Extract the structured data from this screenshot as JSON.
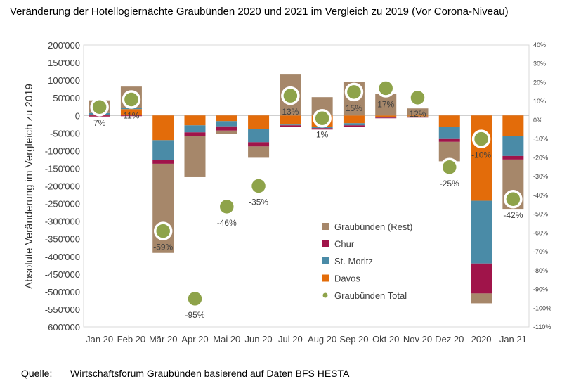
{
  "page": {
    "title": "Veränderung der Hotellogiernächte Graubünden 2020 und 2021 im Vergleich zu 2019 (Vor Corona-Niveau)",
    "source_label": "Quelle:",
    "source_text": "Wirtschaftsforum Graubünden basierend auf Daten BFS HESTA"
  },
  "chart_data": {
    "type": "bar",
    "stacked": true,
    "title": "Veränderung der Hotellogiernächte Graubünden 2020 und 2021 im Vergleich zu 2019 (Vor Corona-Niveau)",
    "ylabel": "Absolute Veränderung im Vergleich zu 2019",
    "ylim": [
      -600000,
      200000
    ],
    "y2lim": [
      -110,
      40
    ],
    "y2_unit": "%",
    "grid": false,
    "legend_position": "lower-center",
    "categories": [
      "Jan 20",
      "Feb 20",
      "Mär 20",
      "Apr 20",
      "Mai 20",
      "Jun 20",
      "Jul 20",
      "Aug 20",
      "Sep 20",
      "Okt 20",
      "Nov 20",
      "Dez 20",
      "2020",
      "Jan 21"
    ],
    "y_ticks": [
      "200'000",
      "150'000",
      "100'000",
      "50'000",
      "0",
      "-50'000",
      "-100'000",
      "-150'000",
      "-200'000",
      "-250'000",
      "-300'000",
      "-350'000",
      "-400'000",
      "-450'000",
      "-500'000",
      "-550'000",
      "-600'000"
    ],
    "y2_ticks": [
      "40%",
      "30%",
      "20%",
      "10%",
      "0%",
      "-10%",
      "-20%",
      "-30%",
      "-40%",
      "-50%",
      "-60%",
      "-70%",
      "-80%",
      "-90%",
      "-100%",
      "-110%"
    ],
    "series": [
      {
        "name": "Davos",
        "color": "#E36C0A",
        "values": [
          2000,
          18000,
          -70000,
          -28000,
          -16000,
          -38000,
          -26000,
          -33000,
          -22000,
          -4000,
          -3000,
          -33000,
          -242000,
          -58000
        ]
      },
      {
        "name": "St. Moritz",
        "color": "#4A8BA7",
        "values": [
          5000,
          4000,
          -57000,
          -20000,
          -15000,
          -38000,
          -2000,
          -3000,
          -6000,
          -2000,
          -2000,
          -32000,
          -178000,
          -57000
        ]
      },
      {
        "name": "Chur",
        "color": "#A0144A",
        "values": [
          -3000,
          -2000,
          -10000,
          -10000,
          -12000,
          -12000,
          -5000,
          -4000,
          -5000,
          -2000,
          -1000,
          -10000,
          -85000,
          -10000
        ]
      },
      {
        "name": "Graubünden (Rest)",
        "color": "#A6876A",
        "values": [
          36000,
          60000,
          -253000,
          -117000,
          -10000,
          -32000,
          118000,
          52000,
          96000,
          62000,
          20000,
          -55000,
          -28000,
          -140000
        ]
      },
      {
        "name": "Graubünden Total",
        "color": "#8EA34A",
        "axis": "right",
        "unit": "%",
        "values": [
          7,
          11,
          -59,
          -95,
          -46,
          -35,
          13,
          1,
          15,
          17,
          12,
          -25,
          -10,
          -42
        ],
        "labels": [
          "7%",
          "11%",
          "-59%",
          "-95%",
          "-46%",
          "-35%",
          "13%",
          "1%",
          "15%",
          "17%",
          "12%",
          "-25%",
          "-10%",
          "-42%"
        ]
      }
    ],
    "legend": [
      "Graubünden (Rest)",
      "Chur",
      "St. Moritz",
      "Davos",
      "Graubünden Total"
    ]
  }
}
